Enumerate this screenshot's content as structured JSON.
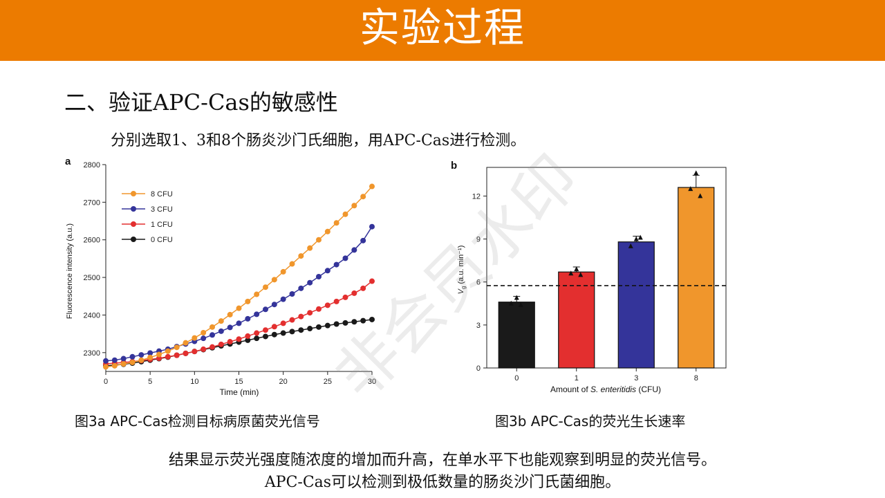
{
  "header": {
    "title": "实验过程"
  },
  "section": {
    "heading": "二、验证APC-Cas的敏感性",
    "intro": "分别选取1、3和8个肠炎沙门氏细胞，用APC-Cas进行检测。"
  },
  "captions": {
    "fig_a": "图3a APC-Cas检测目标病原菌荧光信号",
    "fig_b": "图3b APC-Cas的荧光生长速率"
  },
  "conclusion": {
    "line1": "结果显示荧光强度随浓度的增加而升高，在单水平下也能观察到明显的荧光信号。",
    "line2": "APC-Cas可以检测到极低数量的肠炎沙门氏菌细胞。"
  },
  "watermark": "非会员水印",
  "chart_data": [
    {
      "type": "line",
      "panel_label": "a",
      "xlabel": "Time (min)",
      "ylabel": "Fluorescence intensity (a.u.)",
      "xlim": [
        0,
        30
      ],
      "ylim": [
        2250,
        2800
      ],
      "x_ticks": [
        0,
        5,
        10,
        15,
        20,
        25,
        30
      ],
      "y_ticks": [
        2300,
        2400,
        2500,
        2600,
        2700,
        2800
      ],
      "legend_position": "top-left",
      "x": [
        0,
        1,
        2,
        3,
        4,
        5,
        6,
        7,
        8,
        9,
        10,
        11,
        12,
        13,
        14,
        15,
        16,
        17,
        18,
        19,
        20,
        21,
        22,
        23,
        24,
        25,
        26,
        27,
        28,
        29,
        30
      ],
      "series": [
        {
          "name": "8 CFU",
          "color": "#f0962c",
          "values": [
            2262,
            2265,
            2270,
            2274,
            2280,
            2287,
            2295,
            2304,
            2314,
            2326,
            2339,
            2353,
            2368,
            2384,
            2401,
            2418,
            2436,
            2455,
            2474,
            2494,
            2515,
            2536,
            2557,
            2578,
            2600,
            2622,
            2645,
            2668,
            2691,
            2715,
            2742
          ]
        },
        {
          "name": "3 CFU",
          "color": "#34349a",
          "values": [
            2278,
            2280,
            2284,
            2289,
            2294,
            2299,
            2304,
            2309,
            2316,
            2323,
            2330,
            2338,
            2347,
            2357,
            2367,
            2378,
            2390,
            2402,
            2415,
            2428,
            2442,
            2456,
            2471,
            2486,
            2502,
            2518,
            2534,
            2551,
            2573,
            2598,
            2635
          ]
        },
        {
          "name": "1 CFU",
          "color": "#e32f2f",
          "values": [
            2270,
            2272,
            2274,
            2276,
            2279,
            2282,
            2285,
            2289,
            2293,
            2298,
            2303,
            2309,
            2315,
            2322,
            2329,
            2336,
            2344,
            2352,
            2360,
            2369,
            2378,
            2387,
            2396,
            2406,
            2416,
            2426,
            2436,
            2447,
            2458,
            2471,
            2490
          ]
        },
        {
          "name": "0 CFU",
          "color": "#1a1a1a",
          "values": [
            2265,
            2267,
            2269,
            2272,
            2276,
            2280,
            2284,
            2288,
            2293,
            2298,
            2303,
            2308,
            2313,
            2318,
            2323,
            2328,
            2333,
            2338,
            2343,
            2348,
            2352,
            2356,
            2360,
            2364,
            2368,
            2372,
            2376,
            2379,
            2382,
            2385,
            2388
          ]
        }
      ]
    },
    {
      "type": "bar",
      "panel_label": "b",
      "xlabel": "Amount of S. enteritidis (CFU)",
      "ylabel": "Vg (a.u. min⁻¹)",
      "categories": [
        "0",
        "1",
        "3",
        "8"
      ],
      "values": [
        4.6,
        6.7,
        8.8,
        12.6
      ],
      "errors": [
        0.4,
        0.35,
        0.4,
        0.85
      ],
      "colors": [
        "#1a1a1a",
        "#e32f2f",
        "#34349a",
        "#f0962c"
      ],
      "replicates": [
        [
          4.9,
          4.5,
          4.4
        ],
        [
          6.9,
          6.6,
          6.5
        ],
        [
          9.0,
          8.5,
          9.1
        ],
        [
          13.6,
          12.5,
          12.0
        ]
      ],
      "threshold": 5.75,
      "ylim": [
        0,
        14
      ],
      "y_ticks": [
        0,
        3,
        6,
        9,
        12
      ]
    }
  ]
}
